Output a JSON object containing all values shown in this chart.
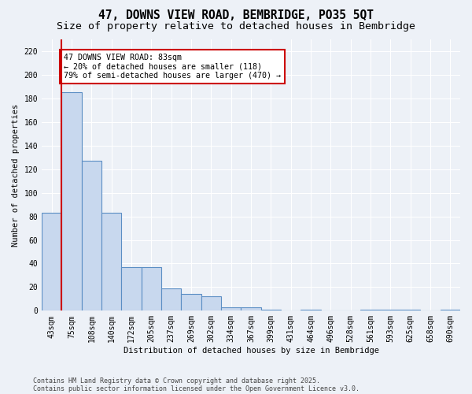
{
  "title_line1": "47, DOWNS VIEW ROAD, BEMBRIDGE, PO35 5QT",
  "title_line2": "Size of property relative to detached houses in Bembridge",
  "xlabel": "Distribution of detached houses by size in Bembridge",
  "ylabel": "Number of detached properties",
  "categories": [
    "43sqm",
    "75sqm",
    "108sqm",
    "140sqm",
    "172sqm",
    "205sqm",
    "237sqm",
    "269sqm",
    "302sqm",
    "334sqm",
    "367sqm",
    "399sqm",
    "431sqm",
    "464sqm",
    "496sqm",
    "528sqm",
    "561sqm",
    "593sqm",
    "625sqm",
    "658sqm",
    "690sqm"
  ],
  "bar_heights": [
    83,
    185,
    127,
    83,
    37,
    37,
    19,
    14,
    12,
    3,
    3,
    1,
    0,
    1,
    0,
    0,
    1,
    1,
    1,
    0,
    1
  ],
  "bar_color": "#c8d8ee",
  "bar_edge_color": "#5b8ec4",
  "vline_x": 0.5,
  "vline_color": "#cc0000",
  "annotation_text": "47 DOWNS VIEW ROAD: 83sqm\n← 20% of detached houses are smaller (118)\n79% of semi-detached houses are larger (470) →",
  "annotation_box_facecolor": "#ffffff",
  "annotation_box_edgecolor": "#cc0000",
  "ylim": [
    0,
    230
  ],
  "yticks": [
    0,
    20,
    40,
    60,
    80,
    100,
    120,
    140,
    160,
    180,
    200,
    220
  ],
  "footer_line1": "Contains HM Land Registry data © Crown copyright and database right 2025.",
  "footer_line2": "Contains public sector information licensed under the Open Government Licence v3.0.",
  "bg_color": "#edf1f7",
  "plot_bg_color": "#edf1f7",
  "grid_color": "#ffffff",
  "title_fontsize": 10.5,
  "subtitle_fontsize": 9.5,
  "axis_label_fontsize": 7.5,
  "tick_fontsize": 7
}
